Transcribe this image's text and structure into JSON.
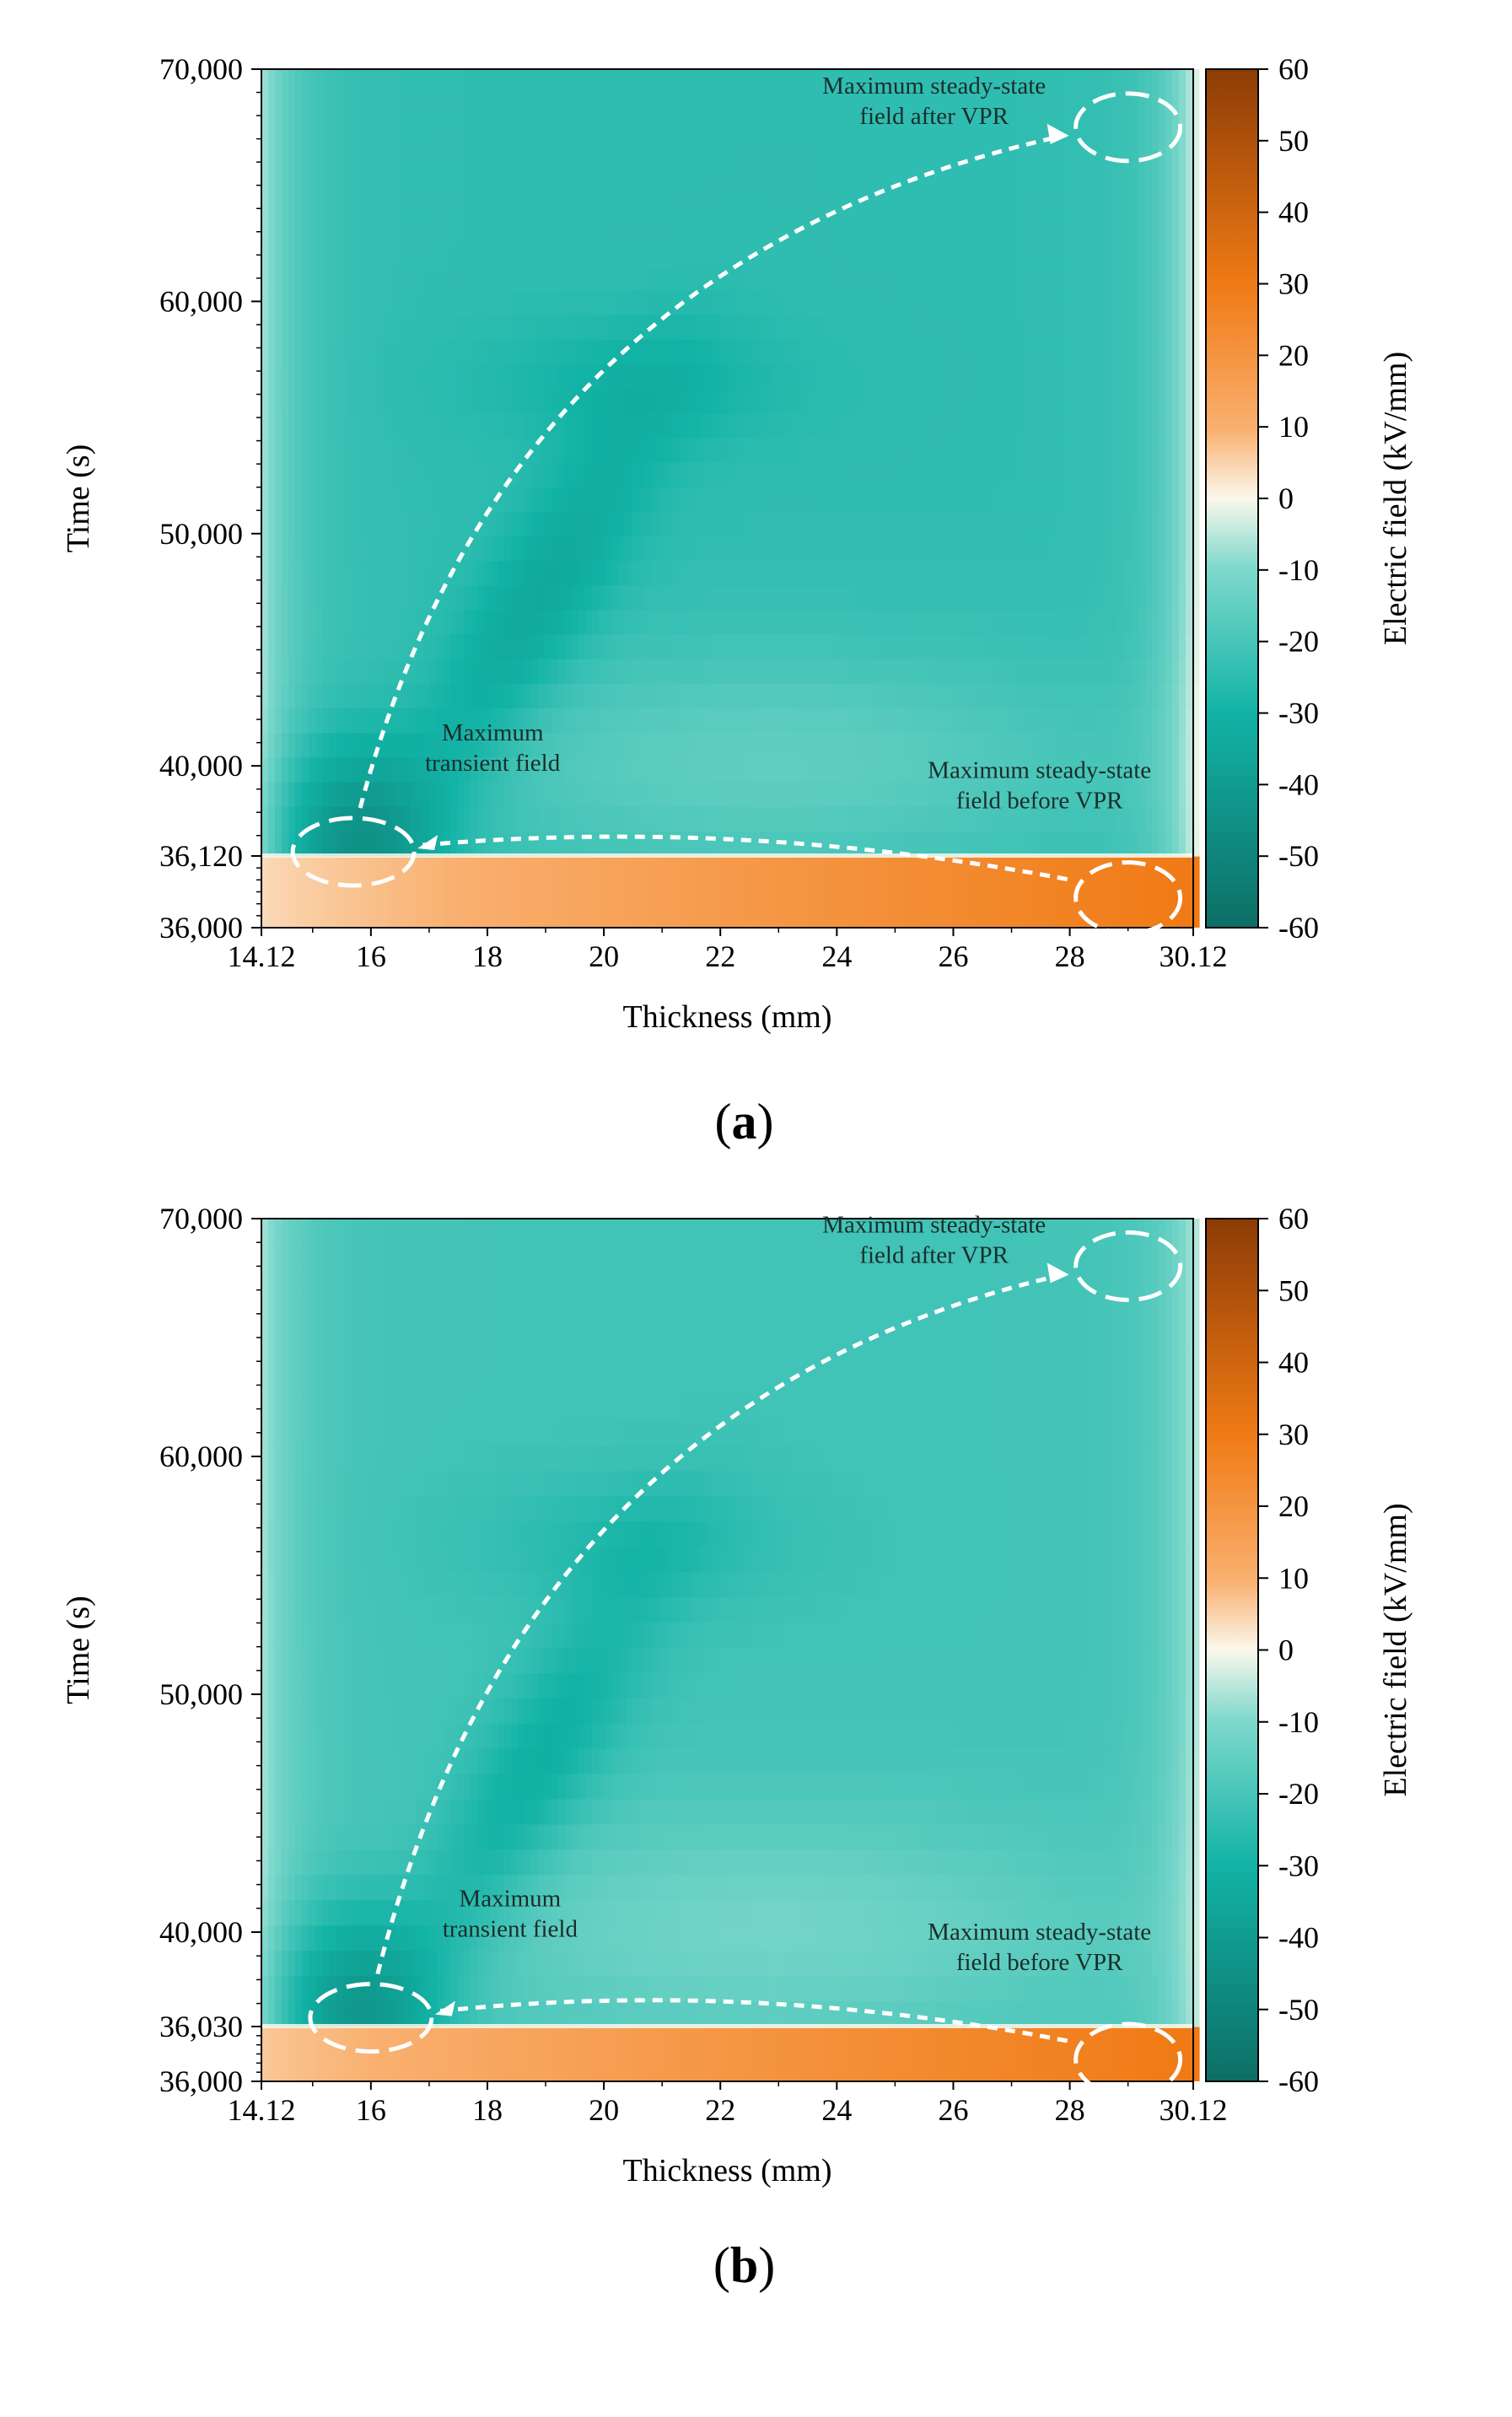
{
  "colors": {
    "neg_dark": "#0d6e66",
    "neg_mid": "#12b3a6",
    "neg_light": "#7fd8cc",
    "zero": "#fbf8ec",
    "pos_light": "#f9b070",
    "pos_mid": "#f07a14",
    "pos_dark": "#8c3c06",
    "annotation": "#ffffff",
    "axis": "#000000"
  },
  "chart_data": [
    {
      "type": "heatmap",
      "panel_label": "a",
      "xlabel": "Thickness (mm)",
      "ylabel": "Time (s)",
      "xlim": [
        14.12,
        30.12
      ],
      "ylim": [
        36000,
        70000
      ],
      "y_break": 36120,
      "x_ticks": [
        "14.12",
        "16",
        "18",
        "20",
        "22",
        "24",
        "26",
        "28",
        "30.12"
      ],
      "x_tick_values": [
        14.12,
        16,
        18,
        20,
        22,
        24,
        26,
        28,
        30.12
      ],
      "y_ticks": [
        "36,000",
        "36,120",
        "40,000",
        "50,000",
        "60,000",
        "70,000"
      ],
      "y_tick_values": [
        36000,
        36120,
        40000,
        50000,
        60000,
        70000
      ],
      "colorbar": {
        "label": "Electric field (kV/mm)",
        "range": [
          -60,
          60
        ],
        "ticks": [
          "60",
          "50",
          "40",
          "30",
          "20",
          "10",
          "0",
          "-10",
          "-20",
          "-30",
          "-40",
          "-50",
          "-60"
        ],
        "tick_values": [
          60,
          50,
          40,
          30,
          20,
          10,
          0,
          -10,
          -20,
          -30,
          -40,
          -50,
          -60
        ]
      },
      "field_summary": {
        "before_vpr_near_inner": 5,
        "before_vpr_near_outer": 30,
        "after_vpr_inner_wall": -8,
        "after_vpr_bulk": -25,
        "transient_max_near_16mm": -45,
        "after_vpr_outer_wall": -5
      },
      "annotations": [
        {
          "id": "transient",
          "text_lines": [
            "Maximum",
            "transient field"
          ],
          "x": 15.7,
          "y": 36300
        },
        {
          "id": "steady_before",
          "text_lines": [
            "Maximum steady-state",
            "field before VPR"
          ],
          "x": 29.0,
          "y": 36050
        },
        {
          "id": "steady_after",
          "text_lines": [
            "Maximum steady-state",
            "field after VPR"
          ],
          "x": 29.0,
          "y": 67500
        }
      ]
    },
    {
      "type": "heatmap",
      "panel_label": "b",
      "xlabel": "Thickness (mm)",
      "ylabel": "Time (s)",
      "xlim": [
        14.12,
        30.12
      ],
      "ylim": [
        36000,
        70000
      ],
      "y_break": 36030,
      "x_ticks": [
        "14.12",
        "16",
        "18",
        "20",
        "22",
        "24",
        "26",
        "28",
        "30.12"
      ],
      "x_tick_values": [
        14.12,
        16,
        18,
        20,
        22,
        24,
        26,
        28,
        30.12
      ],
      "y_ticks": [
        "36,000",
        "36,030",
        "40,000",
        "50,000",
        "60,000",
        "70,000"
      ],
      "y_tick_values": [
        36000,
        36030,
        40000,
        50000,
        60000,
        70000
      ],
      "colorbar": {
        "label": "Electric field (kV/mm)",
        "range": [
          -60,
          60
        ],
        "ticks": [
          "60",
          "50",
          "40",
          "30",
          "20",
          "10",
          "0",
          "-10",
          "-20",
          "-30",
          "-40",
          "-50",
          "-60"
        ],
        "tick_values": [
          60,
          50,
          40,
          30,
          20,
          10,
          0,
          -10,
          -20,
          -30,
          -40,
          -50,
          -60
        ]
      },
      "field_summary": {
        "before_vpr_near_inner": 8,
        "before_vpr_near_outer": 30,
        "after_vpr_inner_wall": -8,
        "after_vpr_bulk": -22,
        "transient_max_near_16mm": -42,
        "after_vpr_outer_wall": -8
      },
      "annotations": [
        {
          "id": "transient",
          "text_lines": [
            "Maximum",
            "transient field"
          ],
          "x": 16.0,
          "y": 36400
        },
        {
          "id": "steady_before",
          "text_lines": [
            "Maximum steady-state",
            "field before VPR"
          ],
          "x": 29.0,
          "y": 36012
        },
        {
          "id": "steady_after",
          "text_lines": [
            "Maximum steady-state",
            "field after VPR"
          ],
          "x": 29.0,
          "y": 68000
        }
      ]
    }
  ]
}
